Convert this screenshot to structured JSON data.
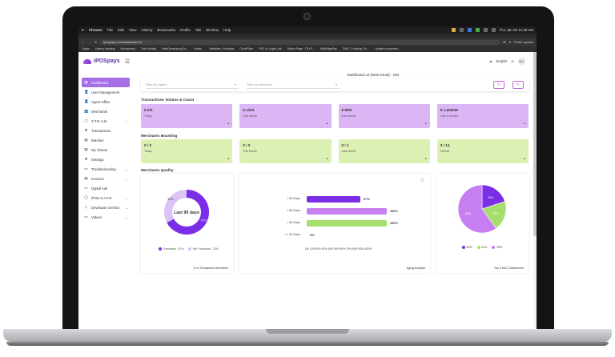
{
  "browser": {
    "menu": [
      "Chrome",
      "File",
      "Edit",
      "View",
      "History",
      "Bookmarks",
      "Profile",
      "Tab",
      "Window",
      "Help"
    ],
    "clock": "Thu Jan 29 11:29 AM",
    "url": "ipospays.tech/dashboard-2",
    "bookmarks": [
      "Topics",
      "Udemy learning",
      "Worksmarty",
      "Tech Writing",
      "WebDeveloping Do...",
      "Notes...",
      "Websites / Hostings",
      "CloudFlare",
      "PAC vs Login Link",
      "Status Page - TSYS...",
      "MyBridgePay",
      "TodD | Tracking, Sh...",
      "Update a payment..."
    ],
    "update_label": "Finish update"
  },
  "app": {
    "logo_text": "iPOSpays",
    "language": "English",
    "avatar": "SLC",
    "dashboard_title": "Dashboard v2 (New Druid) - ISO",
    "nav": [
      {
        "label": "Dashboard",
        "icon": "▦",
        "chev": ""
      },
      {
        "label": "User Management",
        "icon": "👤",
        "chev": ""
      },
      {
        "label": "Agent Office",
        "icon": "👤",
        "chev": ""
      },
      {
        "label": "Merchants",
        "icon": "👥",
        "chev": ""
      },
      {
        "label": "S.T.E.A.M",
        "icon": "▢",
        "chev": "⌄"
      },
      {
        "label": "Transactions",
        "icon": "⚙",
        "chev": ""
      },
      {
        "label": "Batches",
        "icon": "▤",
        "chev": ""
      },
      {
        "label": "My Tickets",
        "icon": "▤",
        "chev": ""
      },
      {
        "label": "Settings",
        "icon": "⚙",
        "chev": ""
      },
      {
        "label": "Troubleshooting",
        "icon": "▭",
        "chev": "⌄"
      },
      {
        "label": "Invoices",
        "icon": "▤",
        "chev": "⌄"
      },
      {
        "label": "Digital Ads",
        "icon": "▭",
        "chev": ""
      },
      {
        "label": "iPOS S.A.F.E",
        "icon": "◯",
        "chev": "⌄"
      },
      {
        "label": "Developer Central",
        "icon": "◇",
        "chev": "⌄"
      },
      {
        "label": "Videos",
        "icon": "▭",
        "chev": "⌄"
      }
    ],
    "filters": {
      "agent_placeholder": "Filter by Agent",
      "merchant_placeholder": "Filter by Merchant"
    },
    "sections": {
      "tv": "Transactions Volume & Count",
      "mb": "Merchants Boarding",
      "mq": "Merchants Quality"
    },
    "tv_cards": [
      {
        "value": "$ 0/0",
        "label": "Today"
      },
      {
        "value": "$ 1/0/4",
        "label": "This Month"
      },
      {
        "value": "$ 89/3",
        "label": "Last Month"
      },
      {
        "value": "$ 1,096/26",
        "label": "Last 3 Months"
      }
    ],
    "mb_cards": [
      {
        "value": "0 / 0",
        "label": "Today"
      },
      {
        "value": "0 / 0",
        "label": "This Month"
      },
      {
        "value": "0 / 1",
        "label": "Last Month"
      },
      {
        "value": "3 / 14",
        "label": "Overall"
      }
    ],
    "donut": {
      "center": "Last 90 days",
      "transacted_pct": "67%",
      "not_pct": "33%",
      "transacted": 67,
      "legend1": "Transacted - 67%",
      "legend2": "Not Transacted - 33%",
      "caption": "% of Transacted Merchants",
      "c1": "#7c2ee6",
      "c2": "#dcc3f6"
    },
    "aging": {
      "caption": "Aging Analysis",
      "bars": [
        {
          "label": "> 90 Days",
          "value": 67,
          "text": "67%",
          "color": "#7c2ee6"
        },
        {
          "label": "> 60 Days",
          "value": 100,
          "text": "100%",
          "color": "#c77ef0"
        },
        {
          "label": "> 30 Days",
          "value": 100,
          "text": "100%",
          "color": "#a6de6e"
        },
        {
          "label": "<= 30 Days",
          "value": 0,
          "text": "0%",
          "color": "#7c2ee6"
        }
      ],
      "axis": "0% 10%20% 30% 40% 50% 60% 70% 80% 90% 100%"
    },
    "mcc": {
      "caption": "Top 5 MCC Distribution",
      "slices": [
        {
          "name": "5399",
          "value": 20,
          "color": "#7c2ee6",
          "label": "20%"
        },
        {
          "name": "5411",
          "value": 20,
          "color": "#a6de6e",
          "label": "20%"
        },
        {
          "name": "5999",
          "value": 60,
          "color": "#c77ef0",
          "label": "60%"
        }
      ]
    }
  }
}
